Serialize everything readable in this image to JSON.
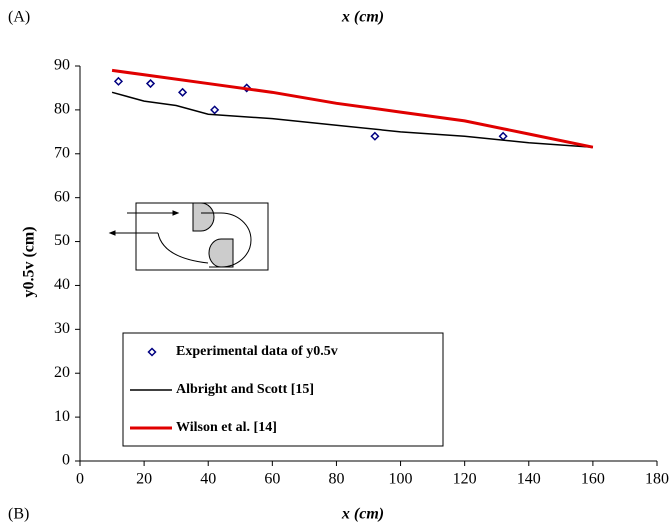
{
  "chart_data": {
    "type": "line",
    "panel_top": "(A)",
    "panel_bottom": "(B)",
    "xlabel": "x (cm)",
    "ylabel": "y0.5v (cm)",
    "xlim": [
      0,
      180
    ],
    "xticks": [
      0,
      20,
      40,
      60,
      80,
      100,
      120,
      140,
      160,
      180
    ],
    "ylim": [
      0,
      90
    ],
    "yticks": [
      0,
      10,
      20,
      30,
      40,
      50,
      60,
      70,
      80,
      90
    ],
    "series": [
      {
        "name": "Experimental data of y0.5v",
        "mode": "markers",
        "color": "#000080",
        "x": [
          12,
          22,
          32,
          42,
          52,
          92,
          132
        ],
        "values": [
          86.5,
          86,
          84,
          80,
          85,
          74,
          74
        ]
      },
      {
        "name": "Albright and Scott [15]",
        "mode": "line",
        "color": "#000000",
        "x": [
          10,
          20,
          30,
          40,
          60,
          80,
          100,
          120,
          140,
          160
        ],
        "values": [
          84,
          82,
          81,
          79,
          78,
          76.5,
          75,
          74,
          72.5,
          71.5
        ]
      },
      {
        "name": "Wilson et al. [14]",
        "mode": "line",
        "color": "#e00000",
        "x": [
          10,
          20,
          40,
          60,
          80,
          100,
          120,
          140,
          160
        ],
        "values": [
          89,
          88,
          86,
          84,
          81.5,
          79.5,
          77.5,
          74.5,
          71.5
        ]
      }
    ]
  }
}
